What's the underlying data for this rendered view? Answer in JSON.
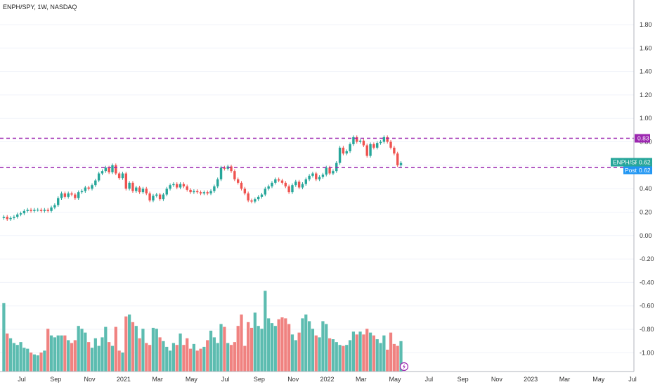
{
  "title": "ENPH/SPY, 1W, NASDAQ",
  "colors": {
    "up": "#26a69a",
    "down": "#ef5350",
    "vol_up": "#5cbcb0",
    "vol_down": "#f08280",
    "level": "#9c27b0",
    "ticker_bg": "#26a69a",
    "post_bg": "#2196f3",
    "grid": "#f0f3fa",
    "axis": "#b0b4bc"
  },
  "chart_data": {
    "type": "candlestick",
    "title": "ENPH/SPY, 1W, NASDAQ",
    "price_axis": {
      "min": -1.1,
      "max": 1.95,
      "ticks": [
        "1.80",
        "1.60",
        "1.40",
        "1.20",
        "1.00",
        "0.80",
        "0.60",
        "0.40",
        "0.20",
        "0.00",
        "-0.20",
        "-0.40",
        "-0.60",
        "-0.80",
        "-1.00"
      ]
    },
    "time_axis": {
      "labels": [
        "Jul",
        "Sep",
        "Nov",
        "2021",
        "Mar",
        "May",
        "Jul",
        "Sep",
        "Nov",
        "2022",
        "Mar",
        "May",
        "Jul",
        "Sep",
        "Nov",
        "2023",
        "Mar",
        "May",
        "Jul"
      ]
    },
    "horizontal_levels": [
      {
        "value": 0.83,
        "label": "0.83"
      },
      {
        "value": 0.58,
        "label": "0.58"
      }
    ],
    "last_price": {
      "ticker": "ENPH/SPY",
      "value": "0.62",
      "post_label": "Post",
      "post_value": "0.62"
    },
    "lightning_icon": "lightning-icon",
    "weeks": [
      {
        "o": 0.15,
        "c": 0.16,
        "v": 0.72
      },
      {
        "o": 0.16,
        "c": 0.14,
        "v": 0.4
      },
      {
        "o": 0.14,
        "c": 0.15,
        "v": 0.35
      },
      {
        "o": 0.15,
        "c": 0.16,
        "v": 0.3
      },
      {
        "o": 0.16,
        "c": 0.18,
        "v": 0.28
      },
      {
        "o": 0.18,
        "c": 0.19,
        "v": 0.31
      },
      {
        "o": 0.19,
        "c": 0.21,
        "v": 0.25
      },
      {
        "o": 0.21,
        "c": 0.22,
        "v": 0.24
      },
      {
        "o": 0.22,
        "c": 0.21,
        "v": 0.2
      },
      {
        "o": 0.21,
        "c": 0.22,
        "v": 0.18
      },
      {
        "o": 0.22,
        "c": 0.22,
        "v": 0.17
      },
      {
        "o": 0.22,
        "c": 0.21,
        "v": 0.2
      },
      {
        "o": 0.21,
        "c": 0.22,
        "v": 0.22
      },
      {
        "o": 0.22,
        "c": 0.21,
        "v": 0.45
      },
      {
        "o": 0.21,
        "c": 0.24,
        "v": 0.38
      },
      {
        "o": 0.24,
        "c": 0.26,
        "v": 0.36
      },
      {
        "o": 0.26,
        "c": 0.32,
        "v": 0.38
      },
      {
        "o": 0.32,
        "c": 0.36,
        "v": 0.38
      },
      {
        "o": 0.36,
        "c": 0.33,
        "v": 0.38
      },
      {
        "o": 0.33,
        "c": 0.36,
        "v": 0.33
      },
      {
        "o": 0.36,
        "c": 0.35,
        "v": 0.3
      },
      {
        "o": 0.35,
        "c": 0.32,
        "v": 0.33
      },
      {
        "o": 0.32,
        "c": 0.37,
        "v": 0.48
      },
      {
        "o": 0.37,
        "c": 0.38,
        "v": 0.45
      },
      {
        "o": 0.38,
        "c": 0.41,
        "v": 0.41
      },
      {
        "o": 0.41,
        "c": 0.4,
        "v": 0.31
      },
      {
        "o": 0.4,
        "c": 0.43,
        "v": 0.25
      },
      {
        "o": 0.43,
        "c": 0.47,
        "v": 0.35
      },
      {
        "o": 0.47,
        "c": 0.53,
        "v": 0.27
      },
      {
        "o": 0.53,
        "c": 0.55,
        "v": 0.36
      },
      {
        "o": 0.55,
        "c": 0.58,
        "v": 0.47
      },
      {
        "o": 0.58,
        "c": 0.54,
        "v": 0.31
      },
      {
        "o": 0.54,
        "c": 0.6,
        "v": 0.27
      },
      {
        "o": 0.6,
        "c": 0.53,
        "v": 0.47
      },
      {
        "o": 0.53,
        "c": 0.49,
        "v": 0.22
      },
      {
        "o": 0.49,
        "c": 0.53,
        "v": 0.2
      },
      {
        "o": 0.53,
        "c": 0.4,
        "v": 0.58
      },
      {
        "o": 0.4,
        "c": 0.45,
        "v": 0.6
      },
      {
        "o": 0.45,
        "c": 0.38,
        "v": 0.52
      },
      {
        "o": 0.38,
        "c": 0.41,
        "v": 0.48
      },
      {
        "o": 0.41,
        "c": 0.37,
        "v": 0.35
      },
      {
        "o": 0.37,
        "c": 0.4,
        "v": 0.45
      },
      {
        "o": 0.4,
        "c": 0.36,
        "v": 0.3
      },
      {
        "o": 0.36,
        "c": 0.3,
        "v": 0.28
      },
      {
        "o": 0.3,
        "c": 0.34,
        "v": 0.46
      },
      {
        "o": 0.34,
        "c": 0.35,
        "v": 0.45
      },
      {
        "o": 0.35,
        "c": 0.31,
        "v": 0.36
      },
      {
        "o": 0.31,
        "c": 0.35,
        "v": 0.32
      },
      {
        "o": 0.35,
        "c": 0.4,
        "v": 0.26
      },
      {
        "o": 0.4,
        "c": 0.43,
        "v": 0.22
      },
      {
        "o": 0.43,
        "c": 0.44,
        "v": 0.3
      },
      {
        "o": 0.44,
        "c": 0.41,
        "v": 0.28
      },
      {
        "o": 0.41,
        "c": 0.44,
        "v": 0.4
      },
      {
        "o": 0.44,
        "c": 0.42,
        "v": 0.28
      },
      {
        "o": 0.42,
        "c": 0.39,
        "v": 0.35
      },
      {
        "o": 0.39,
        "c": 0.37,
        "v": 0.24
      },
      {
        "o": 0.37,
        "c": 0.38,
        "v": 0.29
      },
      {
        "o": 0.38,
        "c": 0.37,
        "v": 0.22
      },
      {
        "o": 0.37,
        "c": 0.36,
        "v": 0.24
      },
      {
        "o": 0.36,
        "c": 0.37,
        "v": 0.26
      },
      {
        "o": 0.37,
        "c": 0.36,
        "v": 0.33
      },
      {
        "o": 0.36,
        "c": 0.38,
        "v": 0.43
      },
      {
        "o": 0.38,
        "c": 0.42,
        "v": 0.36
      },
      {
        "o": 0.42,
        "c": 0.48,
        "v": 0.3
      },
      {
        "o": 0.48,
        "c": 0.58,
        "v": 0.5
      },
      {
        "o": 0.58,
        "c": 0.57,
        "v": 0.47
      },
      {
        "o": 0.57,
        "c": 0.59,
        "v": 0.3
      },
      {
        "o": 0.59,
        "c": 0.55,
        "v": 0.28
      },
      {
        "o": 0.55,
        "c": 0.48,
        "v": 0.31
      },
      {
        "o": 0.48,
        "c": 0.45,
        "v": 0.48
      },
      {
        "o": 0.45,
        "c": 0.4,
        "v": 0.6
      },
      {
        "o": 0.4,
        "c": 0.36,
        "v": 0.27
      },
      {
        "o": 0.36,
        "c": 0.3,
        "v": 0.52
      },
      {
        "o": 0.3,
        "c": 0.29,
        "v": 0.46
      },
      {
        "o": 0.29,
        "c": 0.31,
        "v": 0.62
      },
      {
        "o": 0.31,
        "c": 0.33,
        "v": 0.48
      },
      {
        "o": 0.33,
        "c": 0.35,
        "v": 0.45
      },
      {
        "o": 0.35,
        "c": 0.4,
        "v": 0.85
      },
      {
        "o": 0.4,
        "c": 0.42,
        "v": 0.56
      },
      {
        "o": 0.42,
        "c": 0.45,
        "v": 0.51
      },
      {
        "o": 0.45,
        "c": 0.48,
        "v": 0.48
      },
      {
        "o": 0.48,
        "c": 0.47,
        "v": 0.55
      },
      {
        "o": 0.47,
        "c": 0.45,
        "v": 0.57
      },
      {
        "o": 0.45,
        "c": 0.42,
        "v": 0.56
      },
      {
        "o": 0.42,
        "c": 0.37,
        "v": 0.5
      },
      {
        "o": 0.37,
        "c": 0.43,
        "v": 0.39
      },
      {
        "o": 0.43,
        "c": 0.46,
        "v": 0.33
      },
      {
        "o": 0.46,
        "c": 0.41,
        "v": 0.41
      },
      {
        "o": 0.41,
        "c": 0.44,
        "v": 0.56
      },
      {
        "o": 0.44,
        "c": 0.48,
        "v": 0.6
      },
      {
        "o": 0.48,
        "c": 0.51,
        "v": 0.53
      },
      {
        "o": 0.51,
        "c": 0.53,
        "v": 0.45
      },
      {
        "o": 0.53,
        "c": 0.48,
        "v": 0.38
      },
      {
        "o": 0.48,
        "c": 0.5,
        "v": 0.36
      },
      {
        "o": 0.5,
        "c": 0.52,
        "v": 0.53
      },
      {
        "o": 0.52,
        "c": 0.58,
        "v": 0.5
      },
      {
        "o": 0.58,
        "c": 0.53,
        "v": 0.35
      },
      {
        "o": 0.53,
        "c": 0.55,
        "v": 0.34
      },
      {
        "o": 0.55,
        "c": 0.62,
        "v": 0.31
      },
      {
        "o": 0.62,
        "c": 0.75,
        "v": 0.28
      },
      {
        "o": 0.75,
        "c": 0.7,
        "v": 0.27
      },
      {
        "o": 0.7,
        "c": 0.72,
        "v": 0.28
      },
      {
        "o": 0.72,
        "c": 0.78,
        "v": 0.33
      },
      {
        "o": 0.78,
        "c": 0.84,
        "v": 0.42
      },
      {
        "o": 0.84,
        "c": 0.8,
        "v": 0.39
      },
      {
        "o": 0.8,
        "c": 0.81,
        "v": 0.42
      },
      {
        "o": 0.81,
        "c": 0.77,
        "v": 0.39
      },
      {
        "o": 0.77,
        "c": 0.68,
        "v": 0.45
      },
      {
        "o": 0.68,
        "c": 0.78,
        "v": 0.41
      },
      {
        "o": 0.78,
        "c": 0.75,
        "v": 0.38
      },
      {
        "o": 0.75,
        "c": 0.79,
        "v": 0.34
      },
      {
        "o": 0.79,
        "c": 0.8,
        "v": 0.3
      },
      {
        "o": 0.8,
        "c": 0.84,
        "v": 0.38
      },
      {
        "o": 0.84,
        "c": 0.8,
        "v": 0.23
      },
      {
        "o": 0.8,
        "c": 0.75,
        "v": 0.41
      },
      {
        "o": 0.75,
        "c": 0.7,
        "v": 0.29
      },
      {
        "o": 0.7,
        "c": 0.6,
        "v": 0.27
      },
      {
        "o": 0.6,
        "c": 0.62,
        "v": 0.32
      }
    ]
  }
}
